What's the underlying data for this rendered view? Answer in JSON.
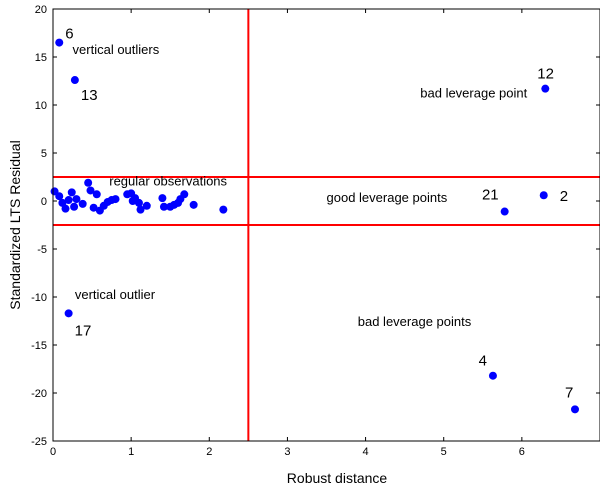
{
  "chart_data": {
    "type": "scatter",
    "xlabel": "Robust distance",
    "ylabel": "Standardized LTS Residual",
    "xlim": [
      0,
      7
    ],
    "ylim": [
      -25,
      20
    ],
    "xticks": [
      0,
      1,
      2,
      3,
      4,
      5,
      6
    ],
    "yticks": [
      20,
      15,
      10,
      5,
      0,
      -5,
      -10,
      -15,
      -20,
      -25
    ],
    "grid": false,
    "colors": {
      "points": "#0000ff",
      "cutoff_lines": "#ff0000",
      "axes": "#000000"
    },
    "cutoffs": {
      "x": 2.5,
      "y": [
        2.5,
        -2.5
      ]
    },
    "series": [
      {
        "points": [
          {
            "x": 0.08,
            "y": 16.5,
            "label": "6"
          },
          {
            "x": 0.28,
            "y": 12.6,
            "label": "13"
          },
          {
            "x": 6.3,
            "y": 11.7,
            "label": "12"
          },
          {
            "x": 6.28,
            "y": 0.6,
            "label": "2"
          },
          {
            "x": 5.78,
            "y": -1.1,
            "label": "21"
          },
          {
            "x": 0.2,
            "y": -11.7,
            "label": "17"
          },
          {
            "x": 5.63,
            "y": -18.2,
            "label": "4"
          },
          {
            "x": 6.68,
            "y": -21.7,
            "label": "7"
          },
          {
            "x": 0.02,
            "y": 1.0
          },
          {
            "x": 0.08,
            "y": 0.5
          },
          {
            "x": 0.12,
            "y": -0.2
          },
          {
            "x": 0.16,
            "y": -0.8
          },
          {
            "x": 0.2,
            "y": 0.1
          },
          {
            "x": 0.24,
            "y": 0.9
          },
          {
            "x": 0.27,
            "y": -0.6
          },
          {
            "x": 0.3,
            "y": 0.2
          },
          {
            "x": 0.38,
            "y": -0.3
          },
          {
            "x": 0.45,
            "y": 1.9
          },
          {
            "x": 0.48,
            "y": 1.1
          },
          {
            "x": 0.52,
            "y": -0.7
          },
          {
            "x": 0.56,
            "y": 0.7
          },
          {
            "x": 0.6,
            "y": -1.0
          },
          {
            "x": 0.65,
            "y": -0.5
          },
          {
            "x": 0.7,
            "y": -0.1
          },
          {
            "x": 0.75,
            "y": 0.1
          },
          {
            "x": 0.8,
            "y": 0.2
          },
          {
            "x": 0.95,
            "y": 0.7
          },
          {
            "x": 1.0,
            "y": 0.8
          },
          {
            "x": 1.02,
            "y": 0.0
          },
          {
            "x": 1.05,
            "y": 0.3
          },
          {
            "x": 1.1,
            "y": -0.2
          },
          {
            "x": 1.12,
            "y": -0.9
          },
          {
            "x": 1.2,
            "y": -0.5
          },
          {
            "x": 1.4,
            "y": 0.3
          },
          {
            "x": 1.42,
            "y": -0.6
          },
          {
            "x": 1.5,
            "y": -0.6
          },
          {
            "x": 1.55,
            "y": -0.4
          },
          {
            "x": 1.6,
            "y": -0.2
          },
          {
            "x": 1.63,
            "y": 0.2
          },
          {
            "x": 1.68,
            "y": 0.7
          },
          {
            "x": 1.8,
            "y": -0.4
          },
          {
            "x": 2.18,
            "y": -0.9
          }
        ]
      }
    ],
    "annotations": [
      {
        "text": "vertical outliers",
        "x": 0.25,
        "y": 15.3
      },
      {
        "text": "bad leverage point",
        "x": 4.7,
        "y": 10.8
      },
      {
        "text": "regular observations",
        "x": 0.72,
        "y": 1.6
      },
      {
        "text": "good leverage points",
        "x": 3.5,
        "y": -0.1
      },
      {
        "text": "vertical outlier",
        "x": 0.28,
        "y": -10.2
      },
      {
        "text": "bad leverage points",
        "x": 3.9,
        "y": -13.0
      }
    ]
  }
}
